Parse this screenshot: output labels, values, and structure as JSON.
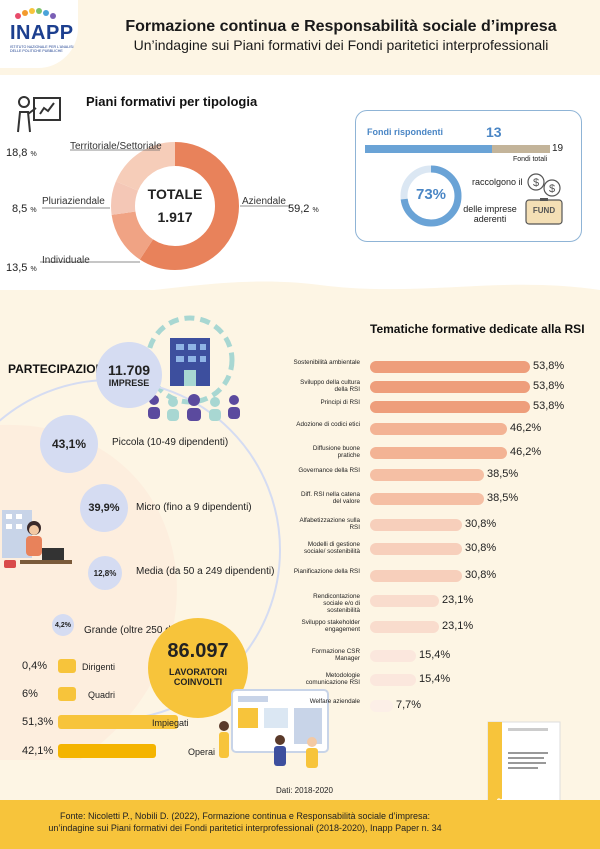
{
  "header": {
    "logo_text": "INAPP",
    "logo_subtitle": "ISTITUTO NAZIONALE PER L'ANALISI DELLE POLITICHE PUBBLICHE",
    "title": "Formazione continua e Responsabilità sociale d’impresa",
    "subtitle": "Un’indagine sui Piani formativi dei Fondi paritetici interprofessionali"
  },
  "piani": {
    "title": "Piani formativi per tipologia",
    "total_label": "TOTALE",
    "total_value": "1.917",
    "items": [
      {
        "label": "Aziendale",
        "pct": "59,2",
        "value": 59.2,
        "color": "#e8825b"
      },
      {
        "label": "Individuale",
        "pct": "13,5",
        "value": 13.5,
        "color": "#f0a384"
      },
      {
        "label": "Pluriaziendale",
        "pct": "8,5",
        "value": 8.5,
        "color": "#f4c7b6"
      },
      {
        "label": "Territoriale/Settoriale",
        "pct": "18,8",
        "value": 18.8,
        "color": "#f6cdb9"
      }
    ],
    "pct_unit": "%"
  },
  "fondi": {
    "rispondenti_label": "Fondi rispondenti",
    "rispondenti_value": "13",
    "totali_label": "Fondi totali",
    "totali_value": "19",
    "rispondenti_num": 13,
    "totali_num": 19,
    "pct": "73%",
    "pct_value": 73,
    "desc_1": "raccolgono il",
    "desc_2": "delle imprese aderenti",
    "icon_label": "FUND"
  },
  "partecipazione": {
    "title": "PARTECIPAZIONE",
    "imprese_value": "11.709",
    "imprese_label": "IMPRESE",
    "sizes": [
      {
        "pct": "43,1%",
        "label": "Piccola (10-49 dipendenti)"
      },
      {
        "pct": "39,9%",
        "label": "Micro (fino a 9 dipendenti)"
      },
      {
        "pct": "12,8%",
        "label": "Media (da 50 a 249 dipendenti)"
      },
      {
        "pct": "4,2%",
        "label": "Grande (oltre 250 dipendenti)"
      }
    ]
  },
  "lavoratori": {
    "value": "86.097",
    "label_1": "LAVORATORI",
    "label_2": "COINVOLTI",
    "categories": [
      {
        "pct": "0,4%",
        "label": "Dirigenti",
        "value": 0.4
      },
      {
        "pct": "6%",
        "label": "Quadri",
        "value": 6
      },
      {
        "pct": "51,3%",
        "label": "Impiegati",
        "value": 51.3
      },
      {
        "pct": "42,1%",
        "label": "Operai",
        "value": 42.1
      }
    ],
    "dati": "Dati: 2018-2020"
  },
  "tematiche": {
    "title": "Tematiche formative dedicate alla RSI",
    "items": [
      {
        "label": "Sostenibilità ambientale",
        "pct": "53,8%",
        "value": 53.8
      },
      {
        "label": "Sviluppo della cultura della RSI",
        "pct": "53,8%",
        "value": 53.8
      },
      {
        "label": "Principi di RSI",
        "pct": "53,8%",
        "value": 53.8
      },
      {
        "label": "Adozione di codici etici",
        "pct": "46,2%",
        "value": 46.2
      },
      {
        "label": "Diffusione buone pratiche",
        "pct": "46,2%",
        "value": 46.2
      },
      {
        "label": "Governance della RSI",
        "pct": "38,5%",
        "value": 38.5
      },
      {
        "label": "Diff. RSI nella catena del valore",
        "pct": "38,5%",
        "value": 38.5
      },
      {
        "label": "Alfabetizzazione sulla RSI",
        "pct": "30,8%",
        "value": 30.8
      },
      {
        "label": "Modelli di gestione sociale/ sostenibilità",
        "pct": "30,8%",
        "value": 30.8
      },
      {
        "label": "Pianificazione della RSI",
        "pct": "30,8%",
        "value": 30.8
      },
      {
        "label": "Rendicontazione sociale e/o di sostenibilità",
        "pct": "23,1%",
        "value": 23.1
      },
      {
        "label": "Sviluppo stakeholder engagement",
        "pct": "23,1%",
        "value": 23.1
      },
      {
        "label": "Formazione CSR Manager",
        "pct": "15,4%",
        "value": 15.4
      },
      {
        "label": "Metodologie comunicazione RSI",
        "pct": "15,4%",
        "value": 15.4
      },
      {
        "label": "Welfare aziendale",
        "pct": "7,7%",
        "value": 7.7
      }
    ]
  },
  "paper": {
    "label": "INAPP PAPER"
  },
  "footer": {
    "line_1": "Fonte: Nicoletti P., Nobili D. (2022), Formazione continua e Responsabilità sociale d’impresa:",
    "line_2": "un’indagine sui Piani formativi dei Fondi paritetici interprofessionali (2018-2020), Inapp Paper n. 34"
  }
}
